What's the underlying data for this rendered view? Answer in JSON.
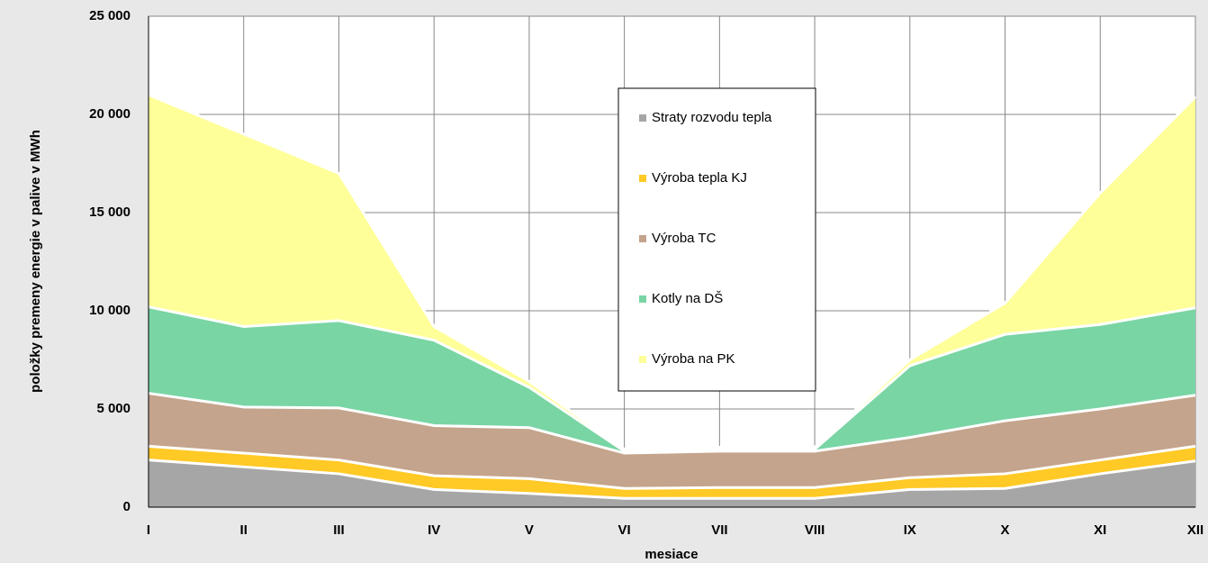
{
  "chart_data": {
    "type": "stacked_area",
    "xlabel": "mesiace",
    "ylabel": "položky premeny energie v palive v MWh",
    "categories": [
      "I",
      "II",
      "III",
      "IV",
      "V",
      "VI",
      "VII",
      "VIII",
      "IX",
      "X",
      "XI",
      "XII"
    ],
    "series": [
      {
        "name": "Straty rozvodu tepla",
        "color": "#a6a6a6",
        "values": [
          2400,
          2050,
          1700,
          900,
          700,
          450,
          450,
          450,
          900,
          950,
          1700,
          2350
        ]
      },
      {
        "name": "Výroba tepla KJ",
        "color": "#ffc926",
        "values": [
          700,
          700,
          700,
          700,
          750,
          500,
          550,
          550,
          600,
          750,
          700,
          750
        ]
      },
      {
        "name": "Výroba TC",
        "color": "#c4a48c",
        "values": [
          2700,
          2350,
          2650,
          2550,
          2600,
          1800,
          1850,
          1850,
          2050,
          2700,
          2600,
          2600
        ]
      },
      {
        "name": "Kotly na DŠ",
        "color": "#79d5a4",
        "values": [
          4400,
          4100,
          4450,
          4350,
          2050,
          100,
          100,
          100,
          3650,
          4400,
          4300,
          4450
        ]
      },
      {
        "name": "Výroba na PK",
        "color": "#ffff99",
        "values": [
          10800,
          9800,
          7500,
          700,
          300,
          100,
          100,
          100,
          300,
          1600,
          6700,
          10750
        ]
      }
    ],
    "ylim": [
      0,
      25000
    ],
    "yticks": [
      0,
      {
        "value": 5000,
        "label": "5 000"
      },
      {
        "value": 10000,
        "label": "10 000"
      },
      {
        "value": 15000,
        "label": "15 000"
      },
      {
        "value": 20000,
        "label": "20 000"
      },
      {
        "value": 25000,
        "label": "25 000"
      }
    ],
    "grid": true
  }
}
